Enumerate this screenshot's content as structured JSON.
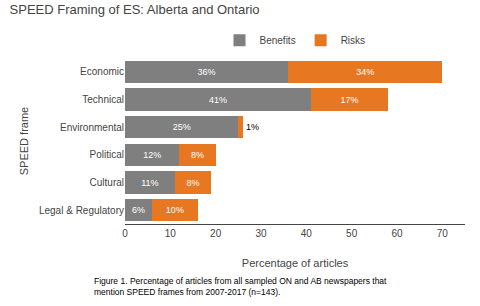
{
  "chart_data": {
    "type": "bar",
    "orientation": "horizontal",
    "stacked": true,
    "title": "SPEED Framing of ES: Alberta and Ontario",
    "xlabel": "Percentage of articles",
    "ylabel": "SPEED frame",
    "annotations": [
      "Figure 1. Percentage of articles from all sampled ON and AB newspapers that\nmention SPEED frames from 2007-2017 (n=143)."
    ],
    "categories": [
      "Economic",
      "Technical",
      "Environmental",
      "Political",
      "Cultural",
      "Legal & Regulatory"
    ],
    "series": [
      {
        "name": "Benefits",
        "color": "#7f7f7f",
        "values": [
          36,
          41,
          25,
          12,
          11,
          6
        ],
        "value_labels": [
          "36%",
          "41%",
          "25%",
          "12%",
          "11%",
          "6%"
        ]
      },
      {
        "name": "Risks",
        "color": "#E87722",
        "values": [
          34,
          17,
          1,
          8,
          8,
          10
        ],
        "value_labels": [
          "34%",
          "17%",
          "1%",
          "8%",
          "8%",
          "10%"
        ]
      }
    ],
    "xlim": [
      0,
      75
    ],
    "xticks": [
      0,
      10,
      20,
      30,
      40,
      50,
      60,
      70
    ],
    "data_labels": true,
    "grid": false,
    "legend": "top"
  }
}
